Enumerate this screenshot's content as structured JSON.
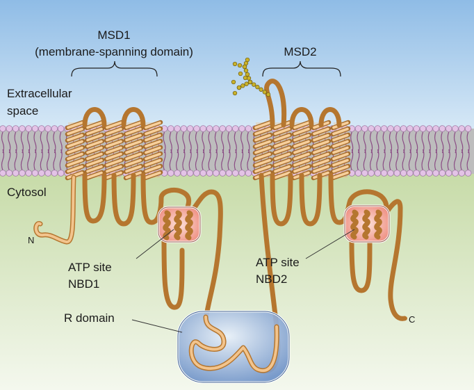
{
  "labels": {
    "msd1_title": "MSD1",
    "msd1_sub": "(membrane-spanning domain)",
    "msd2_title": "MSD2",
    "extracellular_line1": "Extracellular",
    "extracellular_line2": "space",
    "cytosol": "Cytosol",
    "n_terminus": "N",
    "c_terminus": "C",
    "atp1_line1": "ATP site",
    "atp1_line2": "NBD1",
    "atp2_line1": "ATP site",
    "atp2_line2": "NBD2",
    "r_domain": "R domain"
  },
  "colors": {
    "extracellular_top": "#8fbce6",
    "extracellular_bottom": "#d9e9f7",
    "cytosol_top": "#c9dcaa",
    "cytosol_bottom": "#f3f7ec",
    "membrane_core": "#b9b9b9",
    "lipid_head": "#e3c3e6",
    "lipid_tail": "#8a4c84",
    "helix_fill": "#f1bf86",
    "helix_stroke": "#a66d2c",
    "nbd_fill": "#f29a8c",
    "r_domain_fill": "#7d9fd0",
    "glycan": "#c9b22a"
  }
}
